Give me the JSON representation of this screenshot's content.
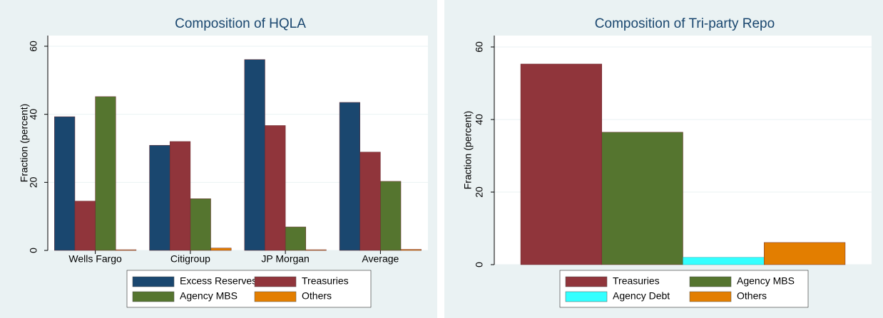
{
  "chart_data": [
    {
      "type": "bar",
      "title": "Composition of HQLA",
      "y_label": "Fraction (percent)",
      "categories": [
        "Wells Fargo",
        "Citigroup",
        "JP Morgan",
        "Average"
      ],
      "series": [
        {
          "name": "Excess Reserves",
          "color": "#1a476f",
          "values": [
            39.3,
            30.9,
            56.1,
            43.5
          ]
        },
        {
          "name": "Treasuries",
          "color": "#90353b",
          "values": [
            14.5,
            32.0,
            36.7,
            28.9
          ]
        },
        {
          "name": "Agency MBS",
          "color": "#55752f",
          "values": [
            45.2,
            15.2,
            6.9,
            20.3
          ]
        },
        {
          "name": "Others",
          "color": "#e37e00",
          "values": [
            0.2,
            0.7,
            0.2,
            0.3
          ]
        }
      ],
      "ylim": [
        0,
        60
      ],
      "yticks": [
        0,
        20,
        40,
        60
      ],
      "grid": true
    },
    {
      "type": "bar",
      "title": "Composition of Tri-party Repo",
      "y_label": "Fraction (percent)",
      "categories": [
        null
      ],
      "series": [
        {
          "name": "Treasuries",
          "color": "#90353b",
          "values": [
            55.3
          ]
        },
        {
          "name": "Agency MBS",
          "color": "#55752f",
          "values": [
            36.5
          ]
        },
        {
          "name": "Agency Debt",
          "color": "#33ffff",
          "values": [
            2.0
          ]
        },
        {
          "name": "Others",
          "color": "#e37e00",
          "values": [
            6.1
          ]
        }
      ],
      "ylim": [
        0,
        60
      ],
      "yticks": [
        0,
        20,
        40,
        60
      ],
      "grid": true
    }
  ]
}
